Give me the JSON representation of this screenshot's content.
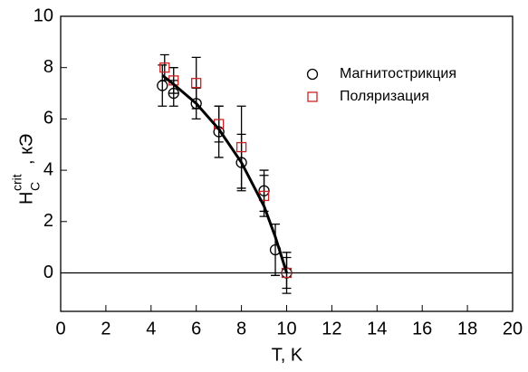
{
  "chart_data": {
    "type": "scatter",
    "xlabel": "T, K",
    "ylabel": {
      "main": "H",
      "sub": "C",
      "sup": "crit",
      "unit": ", кЭ"
    },
    "xlim": [
      0,
      20
    ],
    "ylim": [
      -1.5,
      10
    ],
    "xticks": [
      0,
      2,
      4,
      6,
      8,
      10,
      12,
      14,
      16,
      18,
      20
    ],
    "yticks": [
      0,
      2,
      4,
      6,
      8,
      10
    ],
    "hline": 0,
    "legend": "upper right",
    "series": [
      {
        "name": "Магнитострикция",
        "marker": "circle",
        "color": "#000000",
        "x": [
          4.5,
          5,
          6,
          7,
          8,
          9,
          9.5,
          10
        ],
        "values": [
          7.3,
          7.0,
          6.6,
          5.5,
          4.3,
          3.2,
          0.9,
          0
        ],
        "errors": [
          0.8,
          0.5,
          0.6,
          1.0,
          1.1,
          0.8,
          1.0,
          0.8
        ]
      },
      {
        "name": "Поляризация",
        "marker": "square",
        "color": "#cc2222",
        "x": [
          4.6,
          5,
          6,
          7,
          8,
          9,
          10
        ],
        "values": [
          8.0,
          7.5,
          7.4,
          5.8,
          4.9,
          3.0,
          0
        ],
        "errors": [
          0.5,
          0.5,
          1.0,
          0.7,
          1.6,
          0.8,
          0.6
        ]
      },
      {
        "marker": "line",
        "color": "#000000",
        "x": [
          4.5,
          5,
          6,
          7,
          8,
          9,
          9.5,
          10
        ],
        "values": [
          7.7,
          7.35,
          6.6,
          5.6,
          4.3,
          2.6,
          1.4,
          0
        ]
      }
    ]
  }
}
